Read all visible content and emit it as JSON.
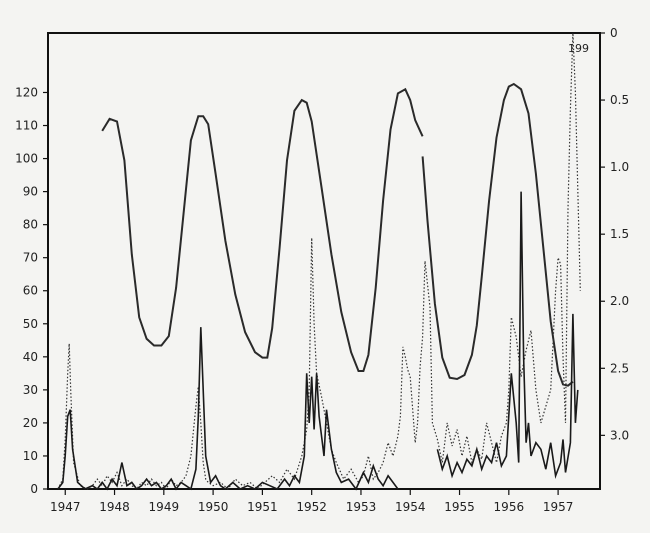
{
  "chart_data": {
    "type": "line",
    "title": "",
    "xlabel": "",
    "ylabel": "",
    "x_tick_labels": [
      "1947",
      "1948",
      "1949",
      "1950",
      "1951",
      "1952",
      "1953",
      "1954",
      "1955",
      "1956",
      "1957"
    ],
    "xlim": [
      1946.7,
      1957.9
    ],
    "y_left": {
      "ticks": [
        0,
        10,
        20,
        30,
        40,
        50,
        60,
        70,
        80,
        90,
        100,
        110,
        120
      ],
      "ylim": [
        0,
        138
      ]
    },
    "y_right": {
      "ticks": [
        "0",
        "0.5",
        "1.0",
        "1.5",
        "2.0",
        "2.5",
        "3.0"
      ],
      "ylim": [
        0,
        3.4
      ],
      "reversed": true
    },
    "annotation": "199",
    "series": [
      {
        "style": "smooth-solid",
        "axis": "right",
        "segments": [
          {
            "x": [
              1947.8,
              1947.95,
              1948.1,
              1948.25,
              1948.4,
              1948.55,
              1948.7,
              1948.85,
              1949.0,
              1949.15,
              1949.3,
              1949.45,
              1949.6,
              1949.75,
              1949.85,
              1949.95,
              1950.1,
              1950.3,
              1950.5,
              1950.7,
              1950.9,
              1951.05,
              1951.15,
              1951.25,
              1951.4,
              1951.55,
              1951.7,
              1951.85,
              1951.95,
              1952.05,
              1952.25,
              1952.45,
              1952.65,
              1952.85,
              1953.0,
              1953.1,
              1953.2,
              1953.35,
              1953.5,
              1953.65,
              1953.8,
              1953.95,
              1954.05,
              1954.15,
              1954.25,
              1954.3
            ],
            "y": [
              0.73,
              0.64,
              0.66,
              0.95,
              1.65,
              2.12,
              2.28,
              2.33,
              2.33,
              2.26,
              1.9,
              1.35,
              0.8,
              0.62,
              0.62,
              0.68,
              1.05,
              1.55,
              1.95,
              2.23,
              2.38,
              2.42,
              2.42,
              2.2,
              1.6,
              0.95,
              0.58,
              0.5,
              0.52,
              0.66,
              1.15,
              1.65,
              2.08,
              2.38,
              2.52,
              2.52,
              2.4,
              1.9,
              1.25,
              0.72,
              0.45,
              0.42,
              0.5,
              0.65,
              0.73,
              0.77
            ]
          },
          {
            "x": [
              1954.3,
              1954.4,
              1954.55,
              1954.7,
              1954.85,
              1955.0,
              1955.15,
              1955.3,
              1955.4,
              1955.5,
              1955.65,
              1955.8,
              1955.95,
              1956.05,
              1956.15,
              1956.3,
              1956.45,
              1956.6,
              1956.75,
              1956.9,
              1957.05,
              1957.15,
              1957.25,
              1957.35
            ],
            "y": [
              0.92,
              1.4,
              2.02,
              2.42,
              2.57,
              2.58,
              2.55,
              2.4,
              2.18,
              1.82,
              1.25,
              0.78,
              0.5,
              0.4,
              0.38,
              0.42,
              0.6,
              1.05,
              1.6,
              2.15,
              2.52,
              2.62,
              2.63,
              2.6
            ]
          }
        ]
      },
      {
        "style": "dotted",
        "axis": "left",
        "x": [
          1946.9,
          1947.0,
          1947.05,
          1947.1,
          1947.13,
          1947.16,
          1947.22,
          1947.35,
          1947.5,
          1947.6,
          1947.7,
          1947.8,
          1947.9,
          1948.0,
          1948.1,
          1948.2,
          1948.3,
          1948.4,
          1948.5,
          1948.6,
          1948.7,
          1948.8,
          1948.9,
          1949.0,
          1949.1,
          1949.2,
          1949.3,
          1949.4,
          1949.5,
          1949.6,
          1949.7,
          1949.75,
          1949.8,
          1949.85,
          1949.9,
          1949.95,
          1950.05,
          1950.2,
          1950.35,
          1950.5,
          1950.65,
          1950.8,
          1950.95,
          1951.1,
          1951.25,
          1951.4,
          1951.55,
          1951.7,
          1951.85,
          1951.95,
          1952.0,
          1952.05,
          1952.1,
          1952.15,
          1952.25,
          1952.35,
          1952.45,
          1952.55,
          1952.7,
          1952.85,
          1953.0,
          1953.1,
          1953.2,
          1953.3,
          1953.4,
          1953.5,
          1953.6,
          1953.7,
          1953.8,
          1953.85,
          1953.9,
          1953.95,
          1954.0,
          1954.05,
          1954.15,
          1954.2,
          1954.25,
          1954.3,
          1954.35,
          1954.45,
          1954.5,
          1954.6,
          1954.7,
          1954.8,
          1954.9,
          1955.0,
          1955.1,
          1955.2,
          1955.3,
          1955.4,
          1955.5,
          1955.6,
          1955.7,
          1955.8,
          1955.9,
          1956.0,
          1956.05,
          1956.1,
          1956.2,
          1956.3,
          1956.4,
          1956.5,
          1956.6,
          1956.7,
          1956.8,
          1956.9,
          1957.0,
          1957.05,
          1957.1,
          1957.15,
          1957.2,
          1957.25,
          1957.3,
          1957.35,
          1957.4,
          1957.5
        ],
        "y": [
          0,
          3,
          15,
          35,
          44,
          30,
          8,
          1,
          0,
          1,
          3,
          1,
          4,
          2,
          5,
          1,
          3,
          1,
          0,
          2,
          1,
          3,
          1,
          2,
          0,
          3,
          1,
          2,
          4,
          10,
          25,
          31,
          20,
          8,
          3,
          2,
          1,
          2,
          0,
          3,
          1,
          2,
          0,
          2,
          4,
          2,
          6,
          3,
          10,
          18,
          30,
          76,
          50,
          35,
          28,
          20,
          12,
          8,
          3,
          6,
          2,
          4,
          10,
          3,
          5,
          8,
          14,
          10,
          16,
          22,
          43,
          40,
          36,
          34,
          14,
          20,
          37,
          46,
          69,
          55,
          20,
          15,
          8,
          20,
          13,
          18,
          10,
          16,
          8,
          12,
          9,
          20,
          14,
          8,
          16,
          20,
          30,
          52,
          46,
          34,
          42,
          48,
          30,
          20,
          25,
          30,
          60,
          70,
          68,
          40,
          20,
          85,
          115,
          138,
          120,
          60
        ]
      },
      {
        "style": "solid",
        "axis": "left",
        "x": [
          1946.9,
          1947.0,
          1947.05,
          1947.1,
          1947.15,
          1947.2,
          1947.3,
          1947.45,
          1947.6,
          1947.7,
          1947.8,
          1947.9,
          1948.0,
          1948.1,
          1948.2,
          1948.3,
          1948.4,
          1948.5,
          1948.6,
          1948.7,
          1948.8,
          1948.9,
          1949.0,
          1949.1,
          1949.2,
          1949.3,
          1949.4,
          1949.5,
          1949.6,
          1949.7,
          1949.75,
          1949.8,
          1949.85,
          1949.9,
          1950.0,
          1950.1,
          1950.2,
          1950.3,
          1950.45,
          1950.6,
          1950.75,
          1950.9,
          1951.05,
          1951.2,
          1951.35,
          1951.5,
          1951.6,
          1951.7,
          1951.8,
          1951.9,
          1951.95,
          1952.0,
          1952.05,
          1952.1,
          1952.15,
          1952.2,
          1952.3,
          1952.35,
          1952.45,
          1952.55,
          1952.65,
          1952.8,
          1952.95,
          1953.1,
          1953.2,
          1953.3,
          1953.4,
          1953.5,
          1953.6,
          1953.7,
          1953.8
        ],
        "y": [
          0,
          2,
          10,
          22,
          24,
          12,
          2,
          0,
          1,
          0,
          2,
          0,
          3,
          1,
          8,
          1,
          2,
          0,
          1,
          3,
          1,
          2,
          0,
          1,
          3,
          0,
          2,
          1,
          0,
          6,
          22,
          49,
          30,
          10,
          2,
          4,
          1,
          0,
          2,
          0,
          1,
          0,
          2,
          1,
          0,
          3,
          1,
          4,
          2,
          10,
          35,
          20,
          34,
          18,
          35,
          22,
          10,
          24,
          12,
          5,
          2,
          3,
          0,
          5,
          2,
          7,
          3,
          1,
          4,
          2,
          0
        ]
      },
      {
        "style": "solid",
        "axis": "left",
        "x": [
          1954.6,
          1954.7,
          1954.8,
          1954.9,
          1955.0,
          1955.1,
          1955.2,
          1955.3,
          1955.4,
          1955.5,
          1955.6,
          1955.7,
          1955.8,
          1955.9,
          1956.0,
          1956.1,
          1956.2,
          1956.25,
          1956.3,
          1956.35,
          1956.4,
          1956.45,
          1956.5,
          1956.6,
          1956.7,
          1956.8,
          1956.9,
          1957.0,
          1957.1,
          1957.15,
          1957.2,
          1957.3,
          1957.35,
          1957.4,
          1957.45
        ],
        "y": [
          12,
          6,
          10,
          4,
          8,
          5,
          9,
          7,
          12,
          6,
          10,
          8,
          14,
          7,
          10,
          35,
          20,
          8,
          90,
          40,
          14,
          20,
          10,
          14,
          12,
          6,
          14,
          4,
          8,
          15,
          5,
          14,
          53,
          20,
          30
        ]
      }
    ]
  }
}
